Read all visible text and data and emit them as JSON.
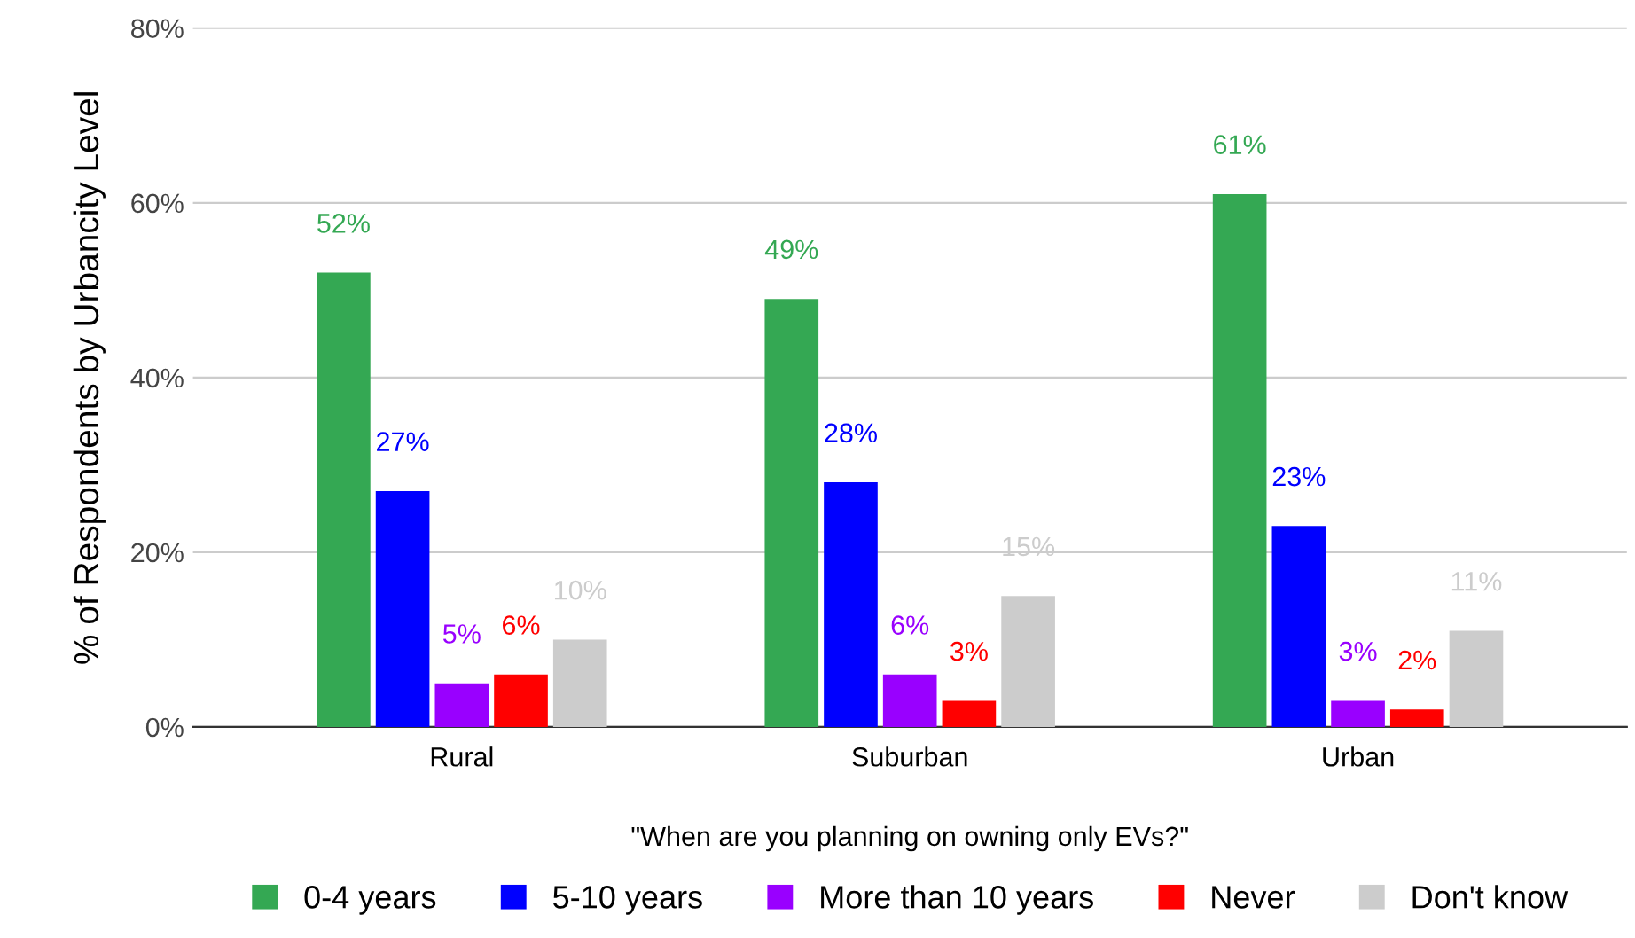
{
  "chart_data": {
    "type": "bar",
    "xlabel": "\"When are you planning on owning only EVs?\"",
    "ylabel": "% of Respondents by Urbancity Level",
    "categories": [
      "Rural",
      "Suburban",
      "Urban"
    ],
    "series": [
      {
        "name": "0-4 years",
        "color": "#34a853",
        "values": [
          52,
          49,
          61
        ],
        "value_labels": [
          "52%",
          "49%",
          "61%"
        ]
      },
      {
        "name": "5-10 years",
        "color": "#0000ff",
        "values": [
          27,
          28,
          23
        ],
        "value_labels": [
          "27%",
          "28%",
          "23%"
        ]
      },
      {
        "name": "More than 10 years",
        "color": "#9900ff",
        "values": [
          5,
          6,
          3
        ],
        "value_labels": [
          "5%",
          "6%",
          "3%"
        ]
      },
      {
        "name": "Never",
        "color": "#ff0000",
        "values": [
          6,
          3,
          2
        ],
        "value_labels": [
          "6%",
          "3%",
          "2%"
        ]
      },
      {
        "name": "Don't know",
        "color": "#cccccc",
        "values": [
          10,
          15,
          11
        ],
        "value_labels": [
          "10%",
          "15%",
          "11%"
        ]
      }
    ],
    "ylim": [
      0,
      80
    ],
    "yticks": [
      {
        "value": 0,
        "label": "0%"
      },
      {
        "value": 20,
        "label": "20%"
      },
      {
        "value": 40,
        "label": "40%"
      },
      {
        "value": 60,
        "label": "60%"
      },
      {
        "value": 80,
        "label": "80%"
      }
    ],
    "grid": "y",
    "legend": "bottom"
  }
}
